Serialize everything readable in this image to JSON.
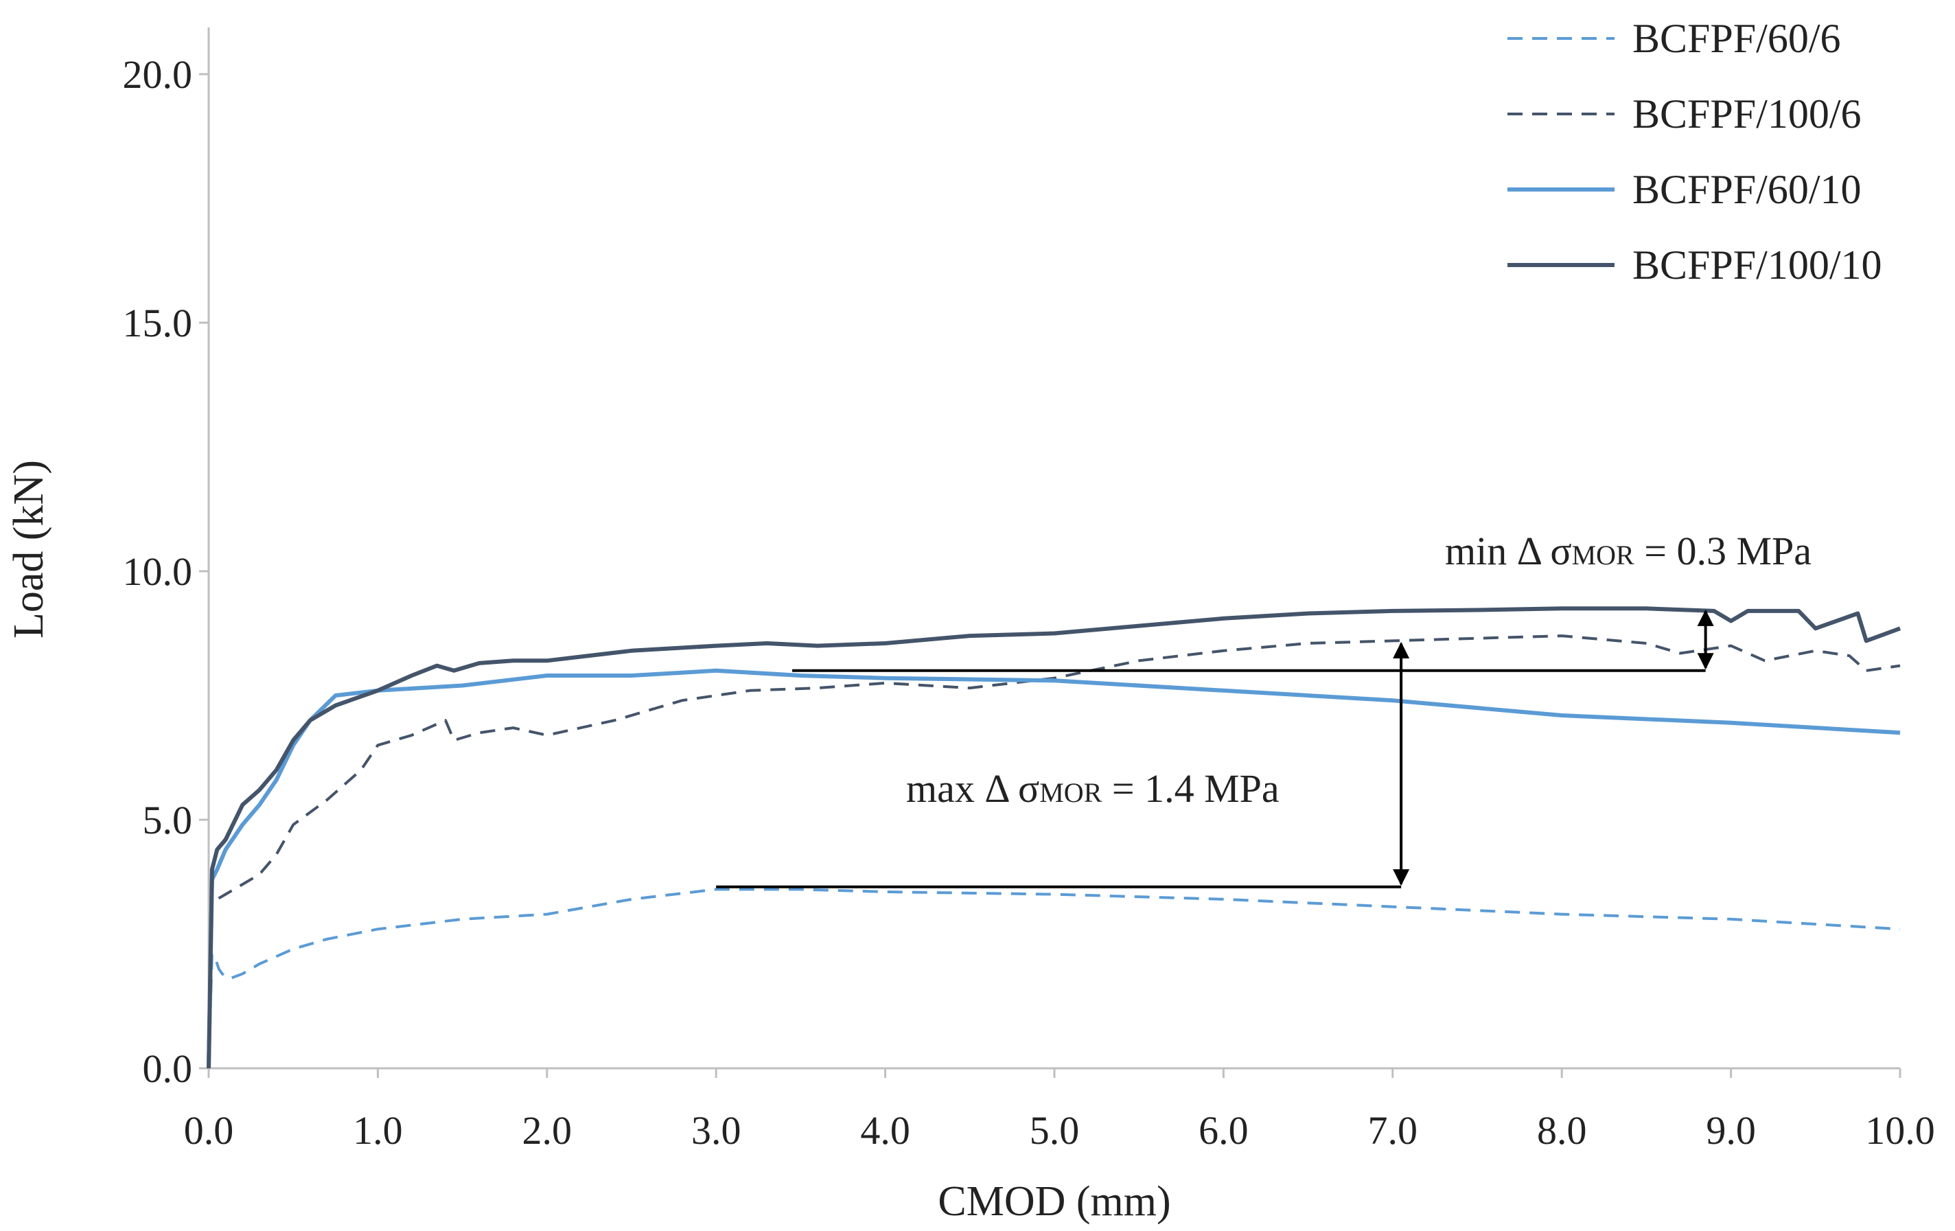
{
  "chart_data": {
    "type": "line",
    "title": "",
    "xlabel": "CMOD (mm)",
    "ylabel": "Load (kN)",
    "xlim": [
      0,
      10
    ],
    "ylim": [
      0,
      20
    ],
    "x_ticks": [
      "0.0",
      "1.0",
      "2.0",
      "3.0",
      "4.0",
      "5.0",
      "6.0",
      "7.0",
      "8.0",
      "9.0",
      "10.0"
    ],
    "y_ticks": [
      "0.0",
      "5.0",
      "10.0",
      "15.0",
      "20.0"
    ],
    "grid": false,
    "legend_position": "top-right",
    "series": [
      {
        "name": "BCFPF/60/6",
        "color": "#5b9bd5",
        "style": "dashed",
        "x": [
          0,
          0.02,
          0.04,
          0.06,
          0.08,
          0.12,
          0.2,
          0.3,
          0.5,
          0.7,
          1.0,
          1.5,
          2.0,
          2.5,
          3.0,
          3.5,
          4.0,
          5.0,
          6.0,
          7.0,
          8.0,
          9.0,
          10.0
        ],
        "values": [
          0,
          2.3,
          2.2,
          2.0,
          1.9,
          1.8,
          1.9,
          2.1,
          2.4,
          2.6,
          2.8,
          3.0,
          3.1,
          3.4,
          3.6,
          3.6,
          3.55,
          3.5,
          3.4,
          3.25,
          3.1,
          3.0,
          2.8
        ]
      },
      {
        "name": "BCFPF/100/6",
        "color": "#44546a",
        "style": "dashed",
        "x": [
          0,
          0.02,
          0.05,
          0.1,
          0.2,
          0.3,
          0.4,
          0.5,
          0.7,
          0.9,
          1.0,
          1.2,
          1.4,
          1.45,
          1.6,
          1.8,
          2.0,
          2.4,
          2.8,
          3.2,
          3.6,
          4.0,
          4.5,
          5.0,
          5.5,
          6.0,
          6.5,
          7.0,
          7.5,
          8.0,
          8.5,
          8.7,
          9.0,
          9.2,
          9.5,
          9.7,
          9.8,
          10.0
        ],
        "values": [
          0,
          3.3,
          3.4,
          3.5,
          3.7,
          3.9,
          4.3,
          4.9,
          5.4,
          6.0,
          6.5,
          6.7,
          7.0,
          6.6,
          6.75,
          6.85,
          6.7,
          7.0,
          7.4,
          7.6,
          7.65,
          7.75,
          7.65,
          7.85,
          8.2,
          8.4,
          8.55,
          8.6,
          8.65,
          8.7,
          8.55,
          8.35,
          8.5,
          8.2,
          8.4,
          8.3,
          8.0,
          8.1
        ]
      },
      {
        "name": "BCFPF/60/10",
        "color": "#5b9bd5",
        "style": "solid",
        "x": [
          0,
          0.02,
          0.05,
          0.1,
          0.2,
          0.3,
          0.4,
          0.5,
          0.6,
          0.75,
          1.0,
          1.5,
          2.0,
          2.5,
          3.0,
          3.5,
          4.0,
          5.0,
          6.0,
          7.0,
          8.0,
          9.0,
          10.0
        ],
        "values": [
          0,
          3.8,
          4.0,
          4.4,
          4.9,
          5.3,
          5.8,
          6.5,
          7.0,
          7.5,
          7.6,
          7.7,
          7.9,
          7.9,
          8.0,
          7.9,
          7.85,
          7.8,
          7.6,
          7.4,
          7.1,
          6.95,
          6.75
        ]
      },
      {
        "name": "BCFPF/100/10",
        "color": "#44546a",
        "style": "solid",
        "x": [
          0,
          0.02,
          0.05,
          0.1,
          0.2,
          0.3,
          0.4,
          0.5,
          0.6,
          0.75,
          1.0,
          1.2,
          1.35,
          1.45,
          1.6,
          1.8,
          2.0,
          2.5,
          3.0,
          3.3,
          3.6,
          4.0,
          4.5,
          5.0,
          5.5,
          6.0,
          6.5,
          7.0,
          7.5,
          8.0,
          8.5,
          8.9,
          9.0,
          9.1,
          9.4,
          9.5,
          9.75,
          9.8,
          10.0
        ],
        "values": [
          0,
          4.0,
          4.4,
          4.6,
          5.3,
          5.6,
          6.0,
          6.6,
          7.0,
          7.3,
          7.6,
          7.9,
          8.1,
          8.0,
          8.15,
          8.2,
          8.2,
          8.4,
          8.5,
          8.55,
          8.5,
          8.55,
          8.7,
          8.75,
          8.9,
          9.05,
          9.15,
          9.2,
          9.22,
          9.25,
          9.25,
          9.2,
          9.0,
          9.2,
          9.2,
          8.85,
          9.15,
          8.6,
          8.85
        ]
      }
    ],
    "annotations": [
      {
        "id": "min",
        "prefix": "min Δ σ",
        "subscript": "MOR",
        "suffix": " = 0.3 MPa",
        "x": 8.85,
        "y_from": 8.0,
        "y_to": 9.25,
        "line_x_from": 3.45
      },
      {
        "id": "max",
        "prefix": "max Δ σ",
        "subscript": "MOR",
        "suffix": " = 1.4 MPa",
        "x": 7.05,
        "y_from": 3.65,
        "y_to": 8.6,
        "line_x_from": 3.0
      }
    ]
  }
}
